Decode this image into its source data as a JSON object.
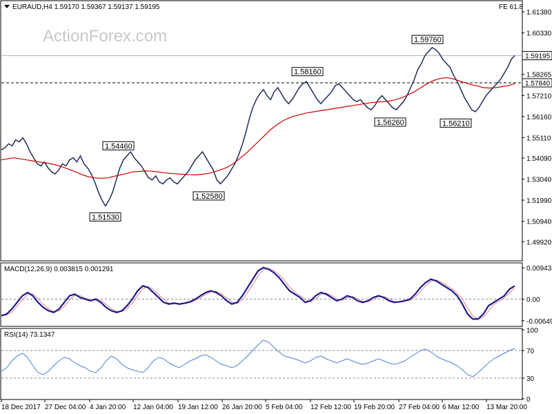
{
  "watermark": "ActionForex.com",
  "chart_data": [
    {
      "type": "candlestick",
      "title": "EURAUD,H4  1.59170 1.59367 1.59137 1.59195",
      "indicator_label": "FE 61.8",
      "ylim": [
        1.49,
        1.619
      ],
      "y_ticks": [
        "1.61380",
        "1.60330",
        "1.58265",
        "1.57210",
        "1.56160",
        "1.55110",
        "1.54090",
        "1.53040",
        "1.51990",
        "1.50940",
        "1.49920"
      ],
      "y_tick_values": [
        1.6138,
        1.6033,
        1.58265,
        1.5721,
        1.5616,
        1.5511,
        1.5409,
        1.5304,
        1.5199,
        1.5094,
        1.4992
      ],
      "current_price_label": "1.59195",
      "current_price": 1.59195,
      "horizontal_level_label": "1.57840",
      "horizontal_level": 1.5784,
      "x_ticks": [
        "18 Dec 2017",
        "27 Dec 04:00",
        "4 Jan 20:00",
        "12 Jan 04:00",
        "19 Jan 12:00",
        "26 Jan 20:00",
        "5 Feb 04:00",
        "12 Feb 12:00",
        "19 Feb 20:00",
        "27 Feb 04:00",
        "6 Mar 12:00",
        "13 Mar 20:00"
      ],
      "annotations": [
        {
          "label": "1.51530",
          "value": 1.5153
        },
        {
          "label": "1.54460",
          "value": 1.5446
        },
        {
          "label": "1.52580",
          "value": 1.5258
        },
        {
          "label": "1.58160",
          "value": 1.5816
        },
        {
          "label": "1.56260",
          "value": 1.5626
        },
        {
          "label": "1.59760",
          "value": 1.5976
        },
        {
          "label": "1.56210",
          "value": 1.5621
        }
      ],
      "close_path": [
        1.545,
        1.546,
        1.548,
        1.547,
        1.55,
        1.549,
        1.551,
        1.548,
        1.544,
        1.541,
        1.538,
        1.537,
        1.539,
        1.536,
        1.534,
        1.533,
        1.535,
        1.538,
        1.537,
        1.54,
        1.541,
        1.539,
        1.542,
        1.538,
        1.536,
        1.533,
        1.529,
        1.524,
        1.52,
        1.517,
        1.52,
        1.524,
        1.53,
        1.536,
        1.54,
        1.542,
        1.544,
        1.541,
        1.539,
        1.537,
        1.534,
        1.531,
        1.53,
        1.532,
        1.529,
        1.528,
        1.53,
        1.531,
        1.529,
        1.528,
        1.53,
        1.532,
        1.534,
        1.537,
        1.54,
        1.542,
        1.544,
        1.541,
        1.538,
        1.535,
        1.53,
        1.528,
        1.53,
        1.532,
        1.535,
        1.538,
        1.542,
        1.547,
        1.553,
        1.56,
        1.566,
        1.57,
        1.573,
        1.575,
        1.572,
        1.57,
        1.574,
        1.576,
        1.573,
        1.57,
        1.568,
        1.57,
        1.573,
        1.576,
        1.578,
        1.579,
        1.576,
        1.573,
        1.57,
        1.568,
        1.57,
        1.572,
        1.574,
        1.577,
        1.578,
        1.576,
        1.574,
        1.572,
        1.57,
        1.569,
        1.57,
        1.568,
        1.566,
        1.565,
        1.567,
        1.57,
        1.572,
        1.57,
        1.568,
        1.566,
        1.565,
        1.567,
        1.569,
        1.572,
        1.576,
        1.58,
        1.585,
        1.588,
        1.592,
        1.594,
        1.596,
        1.595,
        1.593,
        1.59,
        1.588,
        1.586,
        1.582,
        1.579,
        1.575,
        1.571,
        1.568,
        1.565,
        1.564,
        1.566,
        1.569,
        1.572,
        1.574,
        1.576,
        1.578,
        1.58,
        1.583,
        1.586,
        1.59,
        1.592
      ],
      "ma_path": [
        1.54,
        1.5405,
        1.541,
        1.5405,
        1.54,
        1.5395,
        1.539,
        1.5385,
        1.538,
        1.5372,
        1.5362,
        1.535,
        1.5338,
        1.5325,
        1.5315,
        1.531,
        1.5308,
        1.531,
        1.5318,
        1.5325,
        1.5332,
        1.534,
        1.5342,
        1.5345,
        1.5343,
        1.534,
        1.5336,
        1.5332,
        1.533,
        1.5328,
        1.5326,
        1.5325,
        1.5328,
        1.5332,
        1.534,
        1.535,
        1.5362,
        1.538,
        1.5405,
        1.543,
        1.546,
        1.549,
        1.552,
        1.555,
        1.5575,
        1.5595,
        1.561,
        1.562,
        1.5628,
        1.5635,
        1.564,
        1.5645,
        1.565,
        1.5655,
        1.566,
        1.5665,
        1.567,
        1.5675,
        1.568,
        1.5685,
        1.5688,
        1.569,
        1.5693,
        1.57,
        1.571,
        1.5725,
        1.574,
        1.576,
        1.578,
        1.5795,
        1.5805,
        1.581,
        1.5805,
        1.5795,
        1.5785,
        1.5775,
        1.5768,
        1.576,
        1.5758,
        1.576,
        1.5765,
        1.577,
        1.578
      ],
      "series": [
        {
          "name": "",
          "type": "price"
        },
        {
          "name": "",
          "type": "moving-average"
        }
      ]
    },
    {
      "type": "line",
      "title": "MACD(12,26,9) 0.003815 0.001291",
      "ylim": [
        -0.008,
        0.0105
      ],
      "y_ticks": [
        "0.009433",
        "0.00",
        "-0.006495"
      ],
      "y_tick_values": [
        0.009433,
        0.0,
        -0.006495
      ],
      "macd_path": [
        -0.005,
        -0.0045,
        -0.003,
        -0.001,
        0.001,
        0.002,
        0.001,
        -0.001,
        -0.0025,
        -0.0035,
        -0.004,
        -0.003,
        -0.001,
        0.001,
        0.0015,
        0.0005,
        0.0,
        -0.0005,
        0.0,
        -0.001,
        -0.0025,
        -0.0035,
        -0.004,
        -0.0035,
        -0.002,
        0.0,
        0.0025,
        0.004,
        0.0035,
        0.002,
        0.0005,
        -0.001,
        -0.0015,
        -0.0012,
        -0.0015,
        -0.0012,
        -0.0008,
        0.0,
        0.001,
        0.002,
        0.0025,
        0.002,
        0.001,
        -0.0005,
        -0.0015,
        -0.001,
        0.001,
        0.0035,
        0.006,
        0.0085,
        0.0095,
        0.009,
        0.008,
        0.0065,
        0.0045,
        0.0025,
        0.0015,
        0.0005,
        -0.001,
        -0.0005,
        0.001,
        0.002,
        0.0015,
        0.0005,
        -0.0005,
        0.0,
        0.001,
        0.0005,
        -0.0005,
        -0.001,
        -0.0005,
        0.0005,
        0.001,
        0.0005,
        -0.0005,
        -0.001,
        -0.0008,
        -0.0005,
        0.0,
        0.0015,
        0.0035,
        0.005,
        0.006,
        0.0055,
        0.0045,
        0.0035,
        0.0025,
        0.001,
        -0.0015,
        -0.0045,
        -0.006,
        -0.006,
        -0.0045,
        -0.002,
        -0.001,
        0.0,
        0.001,
        0.003,
        0.004
      ],
      "series": [
        {
          "name": "",
          "type": "macd"
        },
        {
          "name": "",
          "type": "signal"
        }
      ]
    },
    {
      "type": "line",
      "title": "RSI(14) 73.1347",
      "ylim": [
        0,
        100
      ],
      "y_ticks": [
        "100",
        "70",
        "30",
        "0"
      ],
      "y_tick_values": [
        100,
        70,
        30,
        0
      ],
      "rsi_path": [
        40,
        45,
        55,
        62,
        66,
        60,
        48,
        38,
        35,
        40,
        48,
        55,
        60,
        58,
        52,
        48,
        45,
        40,
        38,
        45,
        55,
        62,
        58,
        50,
        45,
        42,
        40,
        38,
        45,
        55,
        60,
        58,
        52,
        48,
        45,
        50,
        55,
        58,
        62,
        64,
        60,
        55,
        50,
        48,
        45,
        48,
        55,
        62,
        70,
        78,
        85,
        82,
        75,
        68,
        62,
        60,
        58,
        55,
        52,
        55,
        60,
        62,
        58,
        55,
        52,
        55,
        58,
        55,
        52,
        50,
        52,
        55,
        58,
        55,
        52,
        50,
        52,
        55,
        60,
        65,
        70,
        72,
        68,
        62,
        58,
        55,
        52,
        48,
        42,
        35,
        32,
        38,
        45,
        52,
        58,
        62,
        66,
        70,
        73
      ]
    }
  ]
}
